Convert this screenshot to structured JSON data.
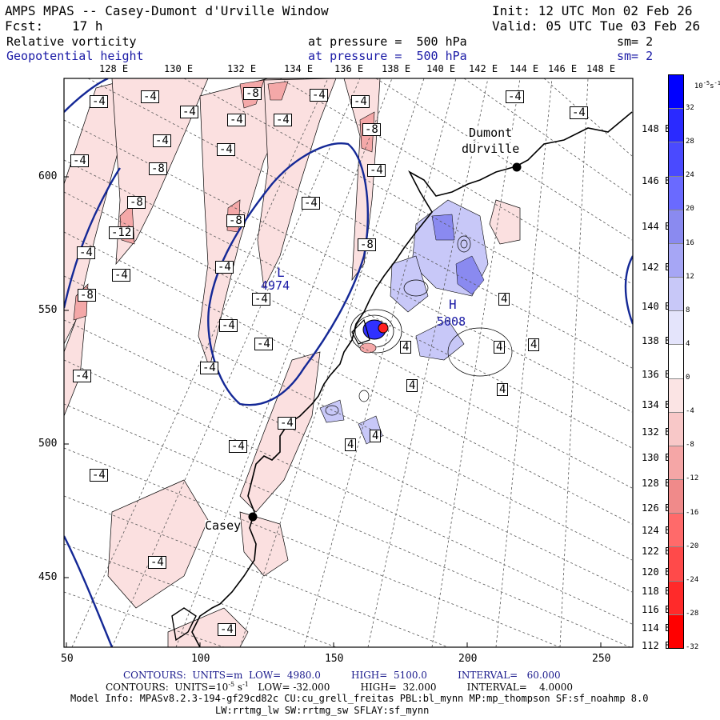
{
  "header": {
    "title": "AMPS MPAS -- Casey-Dumont d'Urville Window",
    "init": "Init: 12 UTC Mon 02 Feb 26",
    "fcst_label": "Fcst:",
    "fcst_value": "17 h",
    "valid": "Valid: 05 UTC Tue 03 Feb 26",
    "field1_name": "Relative vorticity",
    "field1_level": "at pressure =  500 hPa",
    "field1_sm": "sm= 2",
    "field2_name": "Geopotential height",
    "field2_level": "at pressure =  500 hPa",
    "field2_sm": "sm= 2"
  },
  "top_lon_labels": [
    "128 E",
    "130 E",
    "132 E",
    "134 E",
    "136 E",
    "138 E",
    "140 E",
    "142 E",
    "144 E",
    "146 E",
    "148 E"
  ],
  "right_lon_labels": [
    "148 E",
    "146 E",
    "144 E",
    "142 E",
    "140 E",
    "138 E",
    "136 E",
    "134 E",
    "132 E",
    "130 E",
    "128 E",
    "126 E",
    "124 E",
    "122 E",
    "120 E",
    "118 E",
    "116 E",
    "114 E",
    "112 E"
  ],
  "x_axis_labels": [
    "50",
    "100",
    "150",
    "200",
    "250"
  ],
  "y_axis_labels": [
    "600",
    "550",
    "500",
    "450"
  ],
  "places": {
    "dumont": [
      "Dumont",
      "dUrville"
    ],
    "casey": "Casey"
  },
  "contour_labels": {
    "neg4": "-4",
    "neg8": "-8",
    "neg12": "-12",
    "pos4": "4",
    "low": "L",
    "low_value": "4974",
    "high": "H",
    "high_value": "5008"
  },
  "colorbar": {
    "unit_label": "10",
    "unit_exp": "-5",
    "unit_suffix": "s",
    "unit_suffix_exp": "-1",
    "ticks": [
      "32",
      "28",
      "24",
      "20",
      "16",
      "12",
      "8",
      "4",
      "0",
      "-4",
      "-8",
      "-12",
      "-16",
      "-20",
      "-24",
      "-28",
      "-32"
    ],
    "colors": [
      "#0000ff",
      "#2a2aff",
      "#4a4aff",
      "#6a6aff",
      "#8a8af0",
      "#a6a6f5",
      "#c8c8f8",
      "#e4e4fb",
      "#ffffff",
      "#fbe4e4",
      "#f8c8c8",
      "#f5a6a6",
      "#f08a8a",
      "#ff6a6a",
      "#ff4a4a",
      "#ff2a2a",
      "#ff0000"
    ]
  },
  "footer": {
    "line1_label": "CONTOURS:  UNITS=m  LOW=  4980.0          HIGH=  5100.0          INTERVAL=   60.000",
    "line2_part1": "CONTOURS:  UNITS=10",
    "line2_exp1": "-5",
    "line2_part2": " s",
    "line2_exp2": "-1",
    "line2_part3": "   LOW= -32.000          HIGH=  32.000          INTERVAL=    4.0000",
    "model_info": "Model Info: MPASv8.2.3-194-gf29cd82c CU:cu_grell_freitas PBL:bl_mynn MP:mp_thompson SF:sf_noahmp 8.0",
    "model_info2": "LW:rrtmg_lw SW:rrtmg_sw SFLAY:sf_mynn"
  }
}
